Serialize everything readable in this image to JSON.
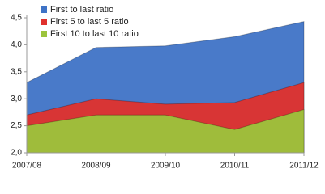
{
  "chart_data": {
    "type": "area",
    "categories": [
      "2007/08",
      "2008/09",
      "2009/10",
      "2010/11",
      "2011/12"
    ],
    "series": [
      {
        "name": "First to last ratio",
        "color": "#3f73c6",
        "values": [
          3.3,
          3.95,
          3.98,
          4.15,
          4.43
        ]
      },
      {
        "name": "First 5 to last 5 ratio",
        "color": "#e0312d",
        "values": [
          2.7,
          3.0,
          2.9,
          2.93,
          3.3
        ]
      },
      {
        "name": "First 10 to last 10 ratio",
        "color": "#9cc43c",
        "values": [
          2.5,
          2.7,
          2.7,
          2.43,
          2.8
        ]
      }
    ],
    "ylim": [
      2,
      4.5
    ],
    "yticks": [
      {
        "value": 2,
        "label": "2,0"
      },
      {
        "value": 2.5,
        "label": "2,5"
      },
      {
        "value": 3,
        "label": "3,0"
      },
      {
        "value": 3.5,
        "label": "3,5"
      },
      {
        "value": 4,
        "label": "4,0"
      },
      {
        "value": 4.5,
        "label": "4,5"
      }
    ],
    "legend": "top-left"
  }
}
